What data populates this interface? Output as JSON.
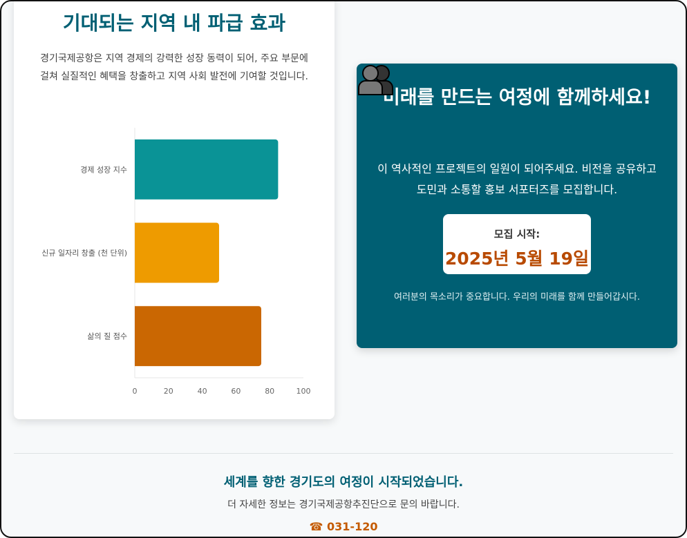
{
  "impact": {
    "title": "기대되는 지역 내 파급 효과",
    "description": "경기국제공항은 지역 경제의 강력한 성장 동력이 되어, 주요 부문에 걸쳐 실질적인 혜택을 창출하고 지역 사회 발전에 기여할 것입니다."
  },
  "chart_data": {
    "type": "bar",
    "orientation": "horizontal",
    "categories": [
      "경제 성장 지수",
      "신규 일자리 창출 (천 단위)",
      "삶의 질 점수"
    ],
    "values": [
      85,
      50,
      75
    ],
    "colors": [
      "#0a9396",
      "#ee9b00",
      "#ca6702"
    ],
    "xlim": [
      0,
      100
    ],
    "xticks": [
      "0",
      "20",
      "40",
      "60",
      "80",
      "100"
    ],
    "grid": false,
    "legend": "none"
  },
  "cta": {
    "title": "미래를 만드는 여정에 함께하세요!",
    "icon": "people-icon",
    "description": "이 역사적인 프로젝트의 일원이 되어주세요. 비전을 공유하고 도민과 소통할 홍보 서포터즈를 모집합니다.",
    "date_label": "모집 시작:",
    "date": "2025년 5월 19일",
    "note": "여러분의 목소리가 중요합니다. 우리의 미래를 함께 만들어갑시다.",
    "bg_color": "#005f73"
  },
  "footer": {
    "headline": "세계를 향한 경기도의 여정이 시작되었습니다.",
    "info": "더 자세한 정보는 경기국제공항추진단으로 문의 바랍니다.",
    "phone": "☎ 031-120"
  }
}
